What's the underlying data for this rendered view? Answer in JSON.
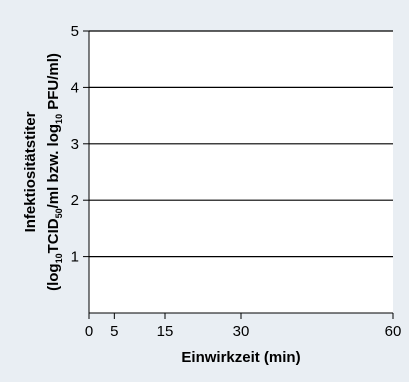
{
  "chart_data": {
    "type": "line",
    "x_ticks": [
      0,
      5,
      15,
      30,
      60
    ],
    "y_ticks": [
      1,
      2,
      3,
      4,
      5
    ],
    "xlim": [
      0,
      60
    ],
    "ylim": [
      0,
      5
    ],
    "grid": "horizontal",
    "xlabel": "Einwirkzeit (min)",
    "ylabel_line1": "Infektiositätstiter",
    "ylabel_line2": {
      "p1": "(log",
      "s1": "10",
      "p2": "TCID",
      "s2": "50",
      "p3": "/ml bzw. log",
      "s3": "10",
      "p4": " PFU/ml)"
    },
    "series": []
  },
  "colors": {
    "background": "#e9eef3",
    "plot_background": "#ffffff",
    "axis": "#000000",
    "grid": "#000000"
  }
}
